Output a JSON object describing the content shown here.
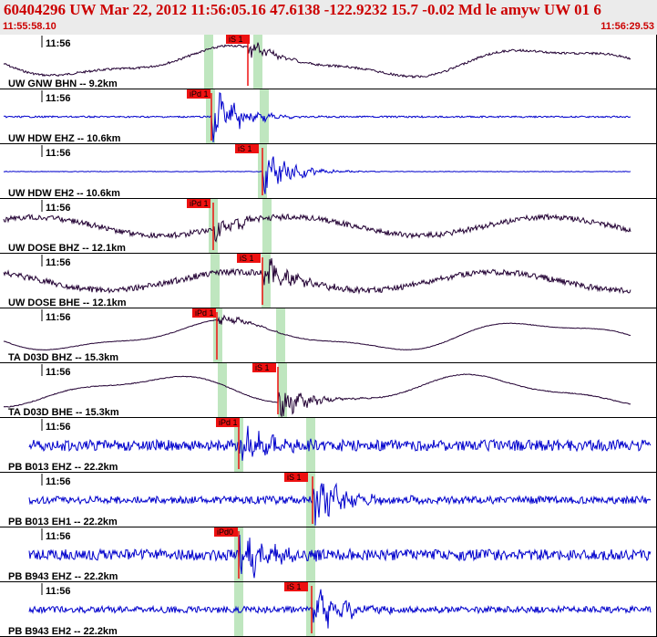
{
  "header": {
    "title": "60404296 UW Mar 22, 2012 11:56:05.16    47.6138 -122.9232 15.7 -0.02 Md le amyw UW 01    6",
    "start_time": "11:55:58.10",
    "end_time": "11:56:29.53"
  },
  "colors": {
    "header_bg": "#ebebeb",
    "header_text": "#cc0000",
    "pick_box": "#ee1111",
    "window_band": "#bfe6bf",
    "trace_dark": "#220033",
    "trace_blue": "#0000cc"
  },
  "traces": [
    {
      "station_label": "UW GNW BHN -- 9.2km",
      "time_label": "11:56",
      "pick_label": "iS 1",
      "color": "dark",
      "type": "lowfreq",
      "noise": 0.08,
      "burst": 0.3
    },
    {
      "station_label": "UW HDW EHZ -- 10.6km",
      "time_label": "11:56",
      "pick_label": "iPd 1",
      "color": "blue",
      "type": "quiet",
      "noise": 0.06,
      "burst": 0.95
    },
    {
      "station_label": "UW HDW EH2 -- 10.6km",
      "time_label": "11:56",
      "pick_label": "iS 1",
      "color": "blue",
      "type": "quiet",
      "noise": 0.02,
      "burst": 0.9
    },
    {
      "station_label": "UW DOSE BHZ -- 12.1km",
      "time_label": "11:56",
      "pick_label": "iPd 1",
      "color": "dark",
      "type": "mixed",
      "noise": 0.2,
      "burst": 0.4
    },
    {
      "station_label": "UW DOSE BHE -- 12.1km",
      "time_label": "11:56",
      "pick_label": "iS 1",
      "color": "dark",
      "type": "mixed",
      "noise": 0.22,
      "burst": 0.7
    },
    {
      "station_label": "TA D03D BHZ -- 15.3km",
      "time_label": "11:56",
      "pick_label": "iPd 1",
      "color": "dark",
      "type": "lowfreq",
      "noise": 0.02,
      "burst": 0.2
    },
    {
      "station_label": "TA D03D BHE -- 15.3km",
      "time_label": "11:56",
      "pick_label": "iS 1",
      "color": "dark",
      "type": "lowfreq",
      "noise": 0.03,
      "burst": 0.6
    },
    {
      "station_label": "PB B013 EHZ -- 22.2km",
      "time_label": "11:56",
      "pick_label": "iPd 1",
      "color": "blue",
      "type": "noisy",
      "noise": 0.4,
      "burst": 0.85
    },
    {
      "station_label": "PB B013 EH1 -- 22.2km",
      "time_label": "11:56",
      "pick_label": "iS 1",
      "color": "blue",
      "type": "noisy",
      "noise": 0.28,
      "burst": 0.95
    },
    {
      "station_label": "PB B943 EHZ -- 22.2km",
      "time_label": "11:56",
      "pick_label": "iPd0",
      "color": "blue",
      "type": "noisy",
      "noise": 0.4,
      "burst": 0.9
    },
    {
      "station_label": "PB B943 EH2 -- 22.2km",
      "time_label": "11:56",
      "pick_label": "iS 1",
      "color": "blue",
      "type": "noisy",
      "noise": 0.24,
      "burst": 0.95
    }
  ]
}
